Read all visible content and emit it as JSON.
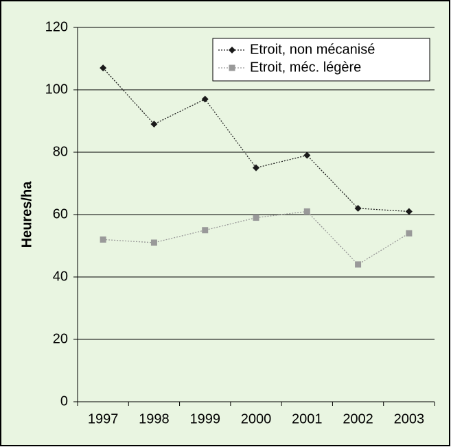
{
  "chart_data": {
    "type": "line",
    "y_label": "Heures/ha",
    "categories": [
      "1997",
      "1998",
      "1999",
      "2000",
      "2001",
      "2002",
      "2003"
    ],
    "series": [
      {
        "name": "Etroit, non mécanisé",
        "color": "#1a1a1a",
        "marker": "diamond",
        "values": [
          107,
          89,
          97,
          75,
          79,
          62,
          61
        ]
      },
      {
        "name": "Etroit, méc. légère",
        "color": "#999999",
        "marker": "square",
        "values": [
          52,
          51,
          55,
          59,
          61,
          44,
          54
        ]
      }
    ],
    "ylim": [
      0,
      120
    ],
    "yticks": [
      0,
      20,
      40,
      60,
      80,
      100,
      120
    ],
    "grid": true,
    "legend": "upper right"
  }
}
